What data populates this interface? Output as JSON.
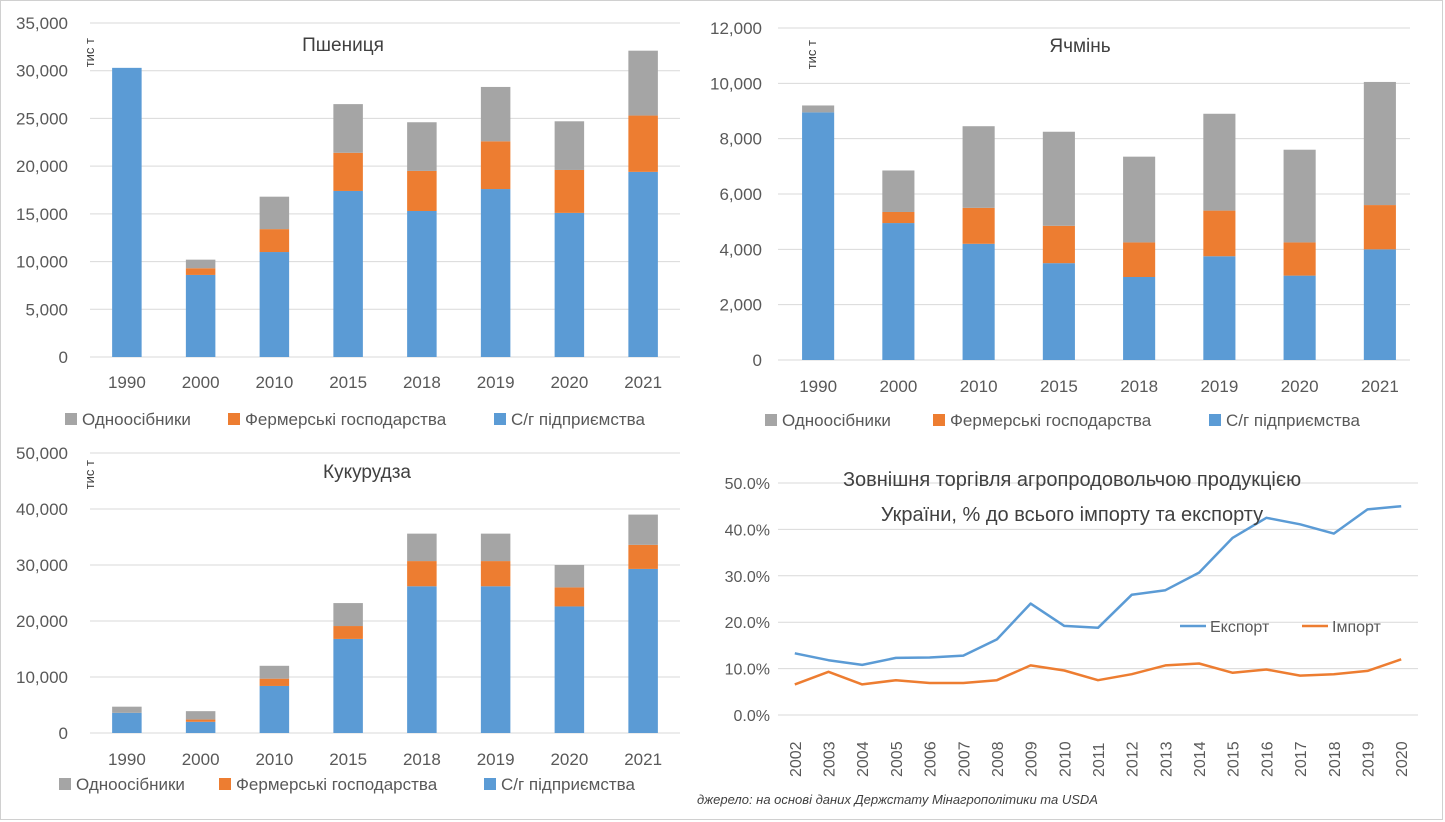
{
  "source_note": "джерело: на основі даних Держстату Мінагрополітики та USDA",
  "chart_data": [
    {
      "type": "bar",
      "stacked": true,
      "title": "Пшениця",
      "ylabel": "тис т",
      "xlabel": "",
      "categories": [
        "1990",
        "2000",
        "2010",
        "2015",
        "2018",
        "2019",
        "2020",
        "2021"
      ],
      "ylim": [
        0,
        35000
      ],
      "yticks": [
        "0",
        "5,000",
        "10,000",
        "15,000",
        "20,000",
        "25,000",
        "30,000",
        "35,000"
      ],
      "legend_position": "bottom",
      "series": [
        {
          "name": "С/г підприємства",
          "color": "#5b9bd5",
          "values": [
            30300,
            8600,
            11000,
            17400,
            15300,
            17600,
            15100,
            19400
          ]
        },
        {
          "name": "Фермерські господарства",
          "color": "#ed7d31",
          "values": [
            0,
            700,
            2400,
            4000,
            4200,
            5000,
            4500,
            5900
          ]
        },
        {
          "name": "Одноосібники",
          "color": "#a5a5a5",
          "values": [
            0,
            900,
            3400,
            5100,
            5100,
            5700,
            5100,
            6800
          ]
        }
      ],
      "legend_order": [
        "Одноосібники",
        "Фермерські господарства",
        "С/г підприємства"
      ]
    },
    {
      "type": "bar",
      "stacked": true,
      "title": "Ячмінь",
      "ylabel": "тис т",
      "xlabel": "",
      "categories": [
        "1990",
        "2000",
        "2010",
        "2015",
        "2018",
        "2019",
        "2020",
        "2021"
      ],
      "ylim": [
        0,
        12000
      ],
      "yticks": [
        "0",
        "2,000",
        "4,000",
        "6,000",
        "8,000",
        "10,000",
        "12,000"
      ],
      "legend_position": "bottom",
      "series": [
        {
          "name": "С/г підприємства",
          "color": "#5b9bd5",
          "values": [
            8950,
            4950,
            4200,
            3500,
            3000,
            3750,
            3050,
            4000
          ]
        },
        {
          "name": "Фермерські господарства",
          "color": "#ed7d31",
          "values": [
            0,
            400,
            1300,
            1350,
            1250,
            1650,
            1200,
            1600
          ]
        },
        {
          "name": "Одноосібники",
          "color": "#a5a5a5",
          "values": [
            250,
            1500,
            2950,
            3400,
            3100,
            3500,
            3350,
            4450
          ]
        }
      ],
      "legend_order": [
        "Одноосібники",
        "Фермерські господарства",
        "С/г підприємства"
      ]
    },
    {
      "type": "bar",
      "stacked": true,
      "title": "Кукурудза",
      "ylabel": "тис т",
      "xlabel": "",
      "categories": [
        "1990",
        "2000",
        "2010",
        "2015",
        "2018",
        "2019",
        "2020",
        "2021"
      ],
      "ylim": [
        0,
        50000
      ],
      "yticks": [
        "0",
        "10,000",
        "20,000",
        "30,000",
        "40,000",
        "50,000"
      ],
      "legend_position": "bottom",
      "series": [
        {
          "name": "С/г підприємства",
          "color": "#5b9bd5",
          "values": [
            3600,
            2000,
            8400,
            16800,
            26200,
            26200,
            22600,
            29300
          ]
        },
        {
          "name": "Фермерські господарства",
          "color": "#ed7d31",
          "values": [
            0,
            400,
            1300,
            2300,
            4500,
            4500,
            3400,
            4300
          ]
        },
        {
          "name": "Одноосібники",
          "color": "#a5a5a5",
          "values": [
            1100,
            1500,
            2300,
            4100,
            4900,
            4900,
            4000,
            5400
          ]
        }
      ],
      "legend_order": [
        "Одноосібники",
        "Фермерські господарства",
        "С/г підприємства"
      ]
    },
    {
      "type": "line",
      "title": "Зовнішня торгівля агропродовольчою продукцією України, % до всього імпорту та експорту",
      "title_lines": [
        "Зовнішня торгівля агропродовольчою продукцією",
        "України, % до всього імпорту та експорту"
      ],
      "xlabel": "",
      "ylabel": "",
      "categories": [
        "2002",
        "2003",
        "2004",
        "2005",
        "2006",
        "2007",
        "2008",
        "2009",
        "2010",
        "2011",
        "2012",
        "2013",
        "2014",
        "2015",
        "2016",
        "2017",
        "2018",
        "2019",
        "2020"
      ],
      "ylim": [
        0,
        50
      ],
      "yticks": [
        "0.0%",
        "10.0%",
        "20.0%",
        "30.0%",
        "40.0%",
        "50.0%"
      ],
      "legend_position": "right",
      "series": [
        {
          "name": "Експорт",
          "color": "#5b9bd5",
          "values": [
            13.3,
            11.8,
            10.8,
            12.3,
            12.4,
            12.8,
            16.3,
            24.0,
            19.2,
            18.8,
            25.9,
            26.9,
            30.7,
            38.2,
            42.5,
            41.1,
            39.1,
            44.3,
            45.0
          ]
        },
        {
          "name": "Імпорт",
          "color": "#ed7d31",
          "values": [
            6.6,
            9.3,
            6.6,
            7.5,
            6.9,
            6.9,
            7.5,
            10.7,
            9.6,
            7.5,
            8.8,
            10.7,
            11.1,
            9.1,
            9.8,
            8.5,
            8.8,
            9.5,
            12.0
          ]
        }
      ]
    }
  ]
}
